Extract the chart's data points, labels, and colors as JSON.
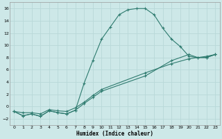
{
  "xlabel": "Humidex (Indice chaleur)",
  "bg_color": "#cde8e8",
  "grid_color": "#b8d8d8",
  "line_color": "#2d7a6e",
  "xlim": [
    -0.5,
    23.5
  ],
  "ylim": [
    -3,
    17
  ],
  "xticks": [
    0,
    1,
    2,
    3,
    4,
    5,
    6,
    7,
    8,
    9,
    10,
    11,
    12,
    13,
    14,
    15,
    16,
    17,
    18,
    19,
    20,
    21,
    22,
    23
  ],
  "yticks": [
    -2,
    0,
    2,
    4,
    6,
    8,
    10,
    12,
    14,
    16
  ],
  "line1_x": [
    0,
    1,
    2,
    3,
    4,
    5,
    6,
    7,
    8,
    9,
    10,
    11,
    12,
    13,
    14,
    15,
    16,
    17,
    18,
    19,
    20,
    21,
    22,
    23
  ],
  "line1_y": [
    -0.8,
    -1.5,
    -1.2,
    -1.6,
    -0.7,
    -1.0,
    -1.2,
    -0.6,
    3.8,
    7.5,
    11.0,
    13.0,
    15.0,
    15.8,
    16.0,
    16.0,
    15.0,
    12.8,
    11.0,
    9.8,
    8.2,
    8.0,
    8.0,
    8.5
  ],
  "line2_x": [
    0,
    1,
    2,
    3,
    4,
    5,
    6,
    7,
    8,
    9,
    10,
    15,
    18,
    20,
    21,
    22,
    23
  ],
  "line2_y": [
    -0.8,
    -1.5,
    -1.2,
    -1.6,
    -0.7,
    -1.0,
    -1.2,
    -0.6,
    0.5,
    1.5,
    2.5,
    5.0,
    7.5,
    8.5,
    8.0,
    8.0,
    8.5
  ],
  "line3_x": [
    0,
    1,
    2,
    3,
    4,
    5,
    6,
    7,
    8,
    9,
    10,
    15,
    18,
    20,
    22,
    23
  ],
  "line3_y": [
    -0.8,
    -1.0,
    -1.0,
    -1.2,
    -0.5,
    -0.7,
    -0.8,
    -0.2,
    0.7,
    1.8,
    2.8,
    5.5,
    7.0,
    7.8,
    8.2,
    8.5
  ]
}
